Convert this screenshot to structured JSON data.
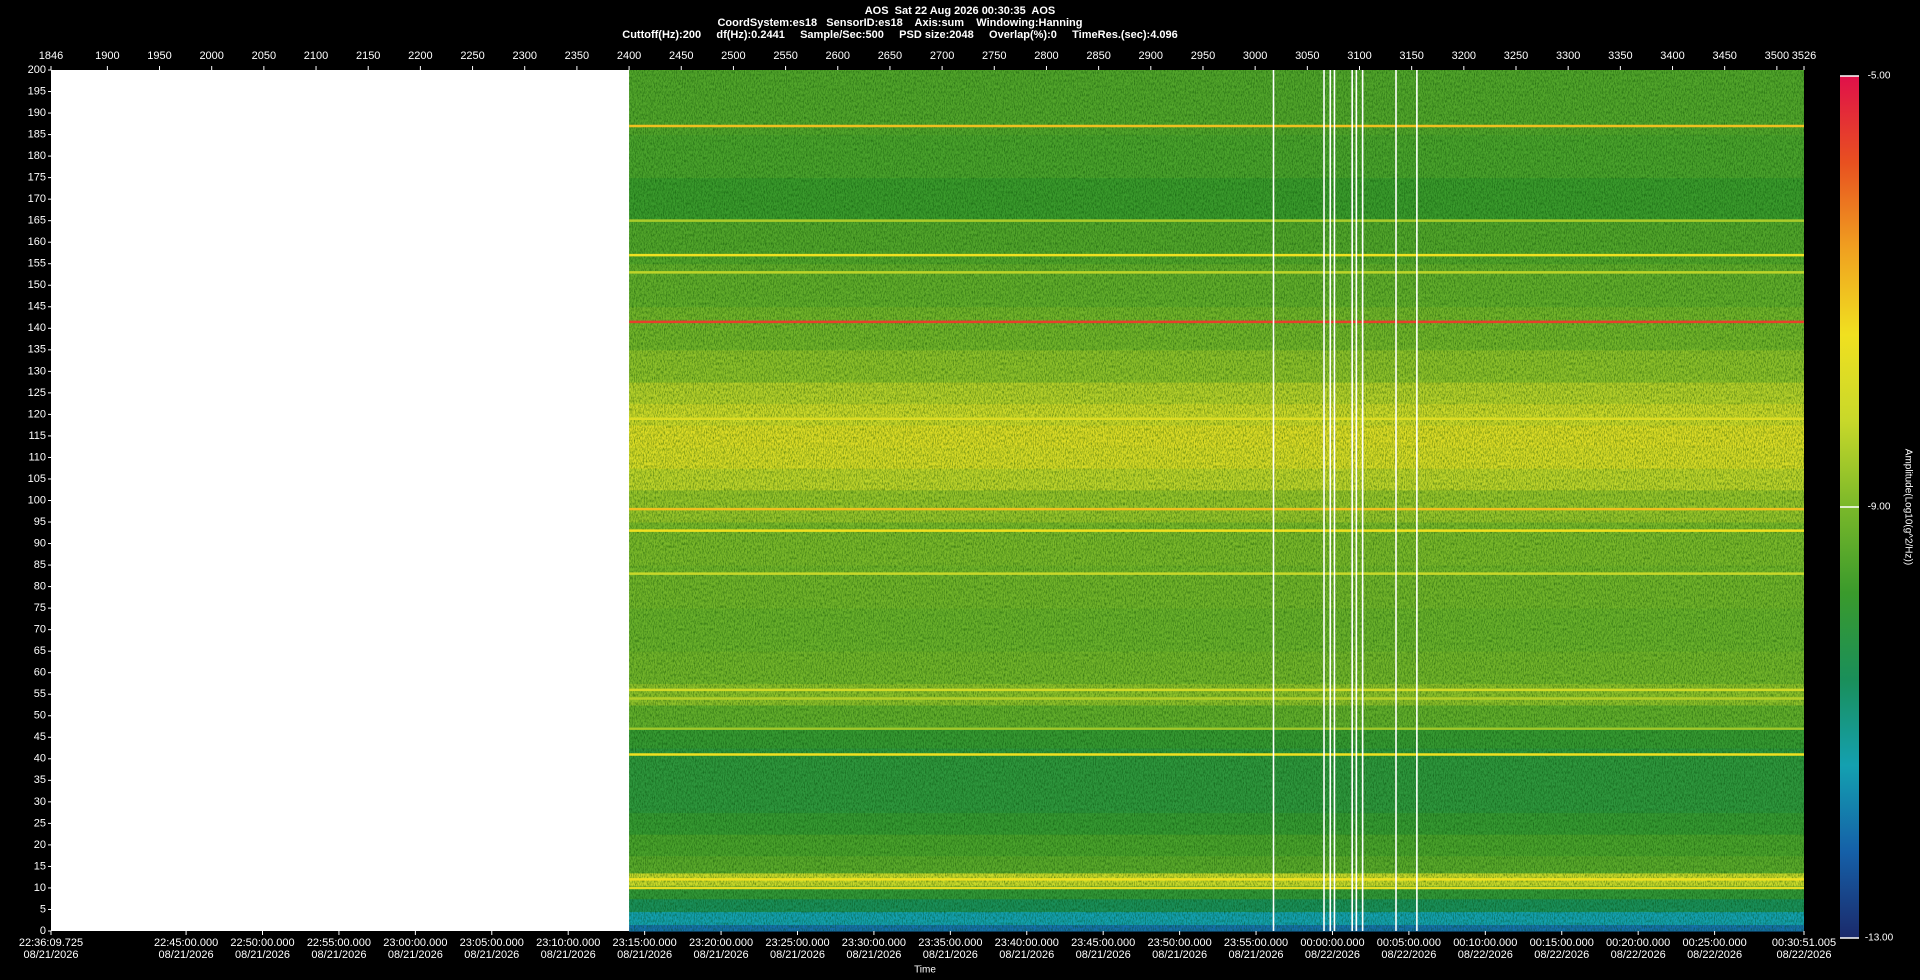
{
  "chart_data": {
    "type": "spectrogram",
    "title_lines": [
      "AOS  Sat 22 Aug 2026 00:30:35  AOS",
      "CoordSystem:es18   SensorID:es18    Axis:sum    Windowing:Hanning",
      "Cuttoff(Hz):200     df(Hz):0.2441     Sample/Sec:500     PSD size:2048     Overlap(%):0     TimeRes.(sec):4.096"
    ],
    "xlabel": "Time",
    "colorbar_label": "Amplitude(Log10(g^2/Hz))",
    "xlim": [
      1846,
      3526
    ],
    "xticks": [
      1846,
      1900,
      1950,
      2000,
      2050,
      2100,
      2150,
      2200,
      2250,
      2300,
      2350,
      2400,
      2450,
      2500,
      2550,
      2600,
      2650,
      2700,
      2750,
      2800,
      2850,
      2900,
      2950,
      3000,
      3050,
      3100,
      3150,
      3200,
      3250,
      3300,
      3350,
      3400,
      3450,
      3500,
      3526
    ],
    "time_ticks": [
      {
        "value": 1846,
        "label": "22:36:09.725",
        "date": "08/21/2026"
      },
      {
        "value": 1975.46,
        "label": "22:45:00.000",
        "date": "08/21/2026"
      },
      {
        "value": 2048.7,
        "label": "22:50:00.000",
        "date": "08/21/2026"
      },
      {
        "value": 2121.95,
        "label": "22:55:00.000",
        "date": "08/21/2026"
      },
      {
        "value": 2195.19,
        "label": "23:00:00.000",
        "date": "08/21/2026"
      },
      {
        "value": 2268.43,
        "label": "23:05:00.000",
        "date": "08/21/2026"
      },
      {
        "value": 2341.67,
        "label": "23:10:00.000",
        "date": "08/21/2026"
      },
      {
        "value": 2414.92,
        "label": "23:15:00.000",
        "date": "08/21/2026"
      },
      {
        "value": 2488.16,
        "label": "23:20:00.000",
        "date": "08/21/2026"
      },
      {
        "value": 2561.4,
        "label": "23:25:00.000",
        "date": "08/21/2026"
      },
      {
        "value": 2634.65,
        "label": "23:30:00.000",
        "date": "08/21/2026"
      },
      {
        "value": 2707.89,
        "label": "23:35:00.000",
        "date": "08/21/2026"
      },
      {
        "value": 2781.13,
        "label": "23:40:00.000",
        "date": "08/21/2026"
      },
      {
        "value": 2854.37,
        "label": "23:45:00.000",
        "date": "08/21/2026"
      },
      {
        "value": 2927.62,
        "label": "23:50:00.000",
        "date": "08/21/2026"
      },
      {
        "value": 3000.86,
        "label": "23:55:00.000",
        "date": "08/21/2026"
      },
      {
        "value": 3074.1,
        "label": "00:00:00.000",
        "date": "08/22/2026"
      },
      {
        "value": 3147.35,
        "label": "00:05:00.000",
        "date": "08/22/2026"
      },
      {
        "value": 3220.59,
        "label": "00:10:00.000",
        "date": "08/22/2026"
      },
      {
        "value": 3293.83,
        "label": "00:15:00.000",
        "date": "08/22/2026"
      },
      {
        "value": 3367.08,
        "label": "00:20:00.000",
        "date": "08/22/2026"
      },
      {
        "value": 3440.32,
        "label": "00:25:00.000",
        "date": "08/22/2026"
      },
      {
        "value": 3526,
        "label": "00:30:51.005",
        "date": "08/22/2026"
      }
    ],
    "ylim": [
      0,
      200
    ],
    "yticks": [
      0,
      5,
      10,
      15,
      20,
      25,
      30,
      35,
      40,
      45,
      50,
      55,
      60,
      65,
      70,
      75,
      80,
      85,
      90,
      95,
      100,
      105,
      110,
      115,
      120,
      125,
      130,
      135,
      140,
      145,
      150,
      155,
      160,
      165,
      170,
      175,
      180,
      185,
      190,
      195,
      200
    ],
    "clim": [
      -13,
      -5
    ],
    "cticks": [
      {
        "value": -13,
        "label": "-13.00"
      },
      {
        "value": -9,
        "label": "-9.00"
      },
      {
        "value": -5,
        "label": "-5.00"
      }
    ],
    "colormap": [
      "#1b2a6b",
      "#1560a8",
      "#14a0b0",
      "#1a8f5a",
      "#3a9a2c",
      "#7ab82a",
      "#c8d82a",
      "#f0e020",
      "#f0a020",
      "#e85020",
      "#e0104a"
    ],
    "data_x": [
      2400,
      3526
    ],
    "profile": {
      "freq": [
        0,
        3,
        6,
        9,
        12,
        15,
        20,
        25,
        30,
        35,
        40,
        45,
        50,
        55,
        60,
        70,
        80,
        90,
        100,
        105,
        110,
        115,
        120,
        125,
        130,
        140,
        150,
        160,
        170,
        180,
        190,
        200
      ],
      "amplitude": [
        -12,
        -11.4,
        -10.6,
        -10,
        -8.2,
        -9.4,
        -9.6,
        -9.9,
        -10.1,
        -10.1,
        -10.1,
        -9.9,
        -9.3,
        -8.8,
        -9.1,
        -9.2,
        -9.1,
        -9.0,
        -8.7,
        -8.3,
        -7.9,
        -7.8,
        -8.1,
        -8.4,
        -8.8,
        -9.1,
        -9.3,
        -9.5,
        -9.8,
        -9.6,
        -9.5,
        -9.5
      ]
    },
    "lines": {
      "freq": [
        187,
        165,
        157,
        153,
        141.5,
        119,
        98,
        93,
        83,
        56,
        54,
        47,
        41,
        12,
        10
      ],
      "amplitude": [
        -7,
        -8.5,
        -7.4,
        -8.3,
        -5.6,
        -7.8,
        -7.0,
        -7.4,
        -8.2,
        -8.0,
        -8.4,
        -8.6,
        -7.4,
        -7.4,
        -7.6
      ]
    },
    "gaps": [
      3017.6,
      3066.0,
      3072.0,
      3076.0,
      3093.0,
      3097.0,
      3103.0,
      3135.0,
      3155.0
    ]
  }
}
